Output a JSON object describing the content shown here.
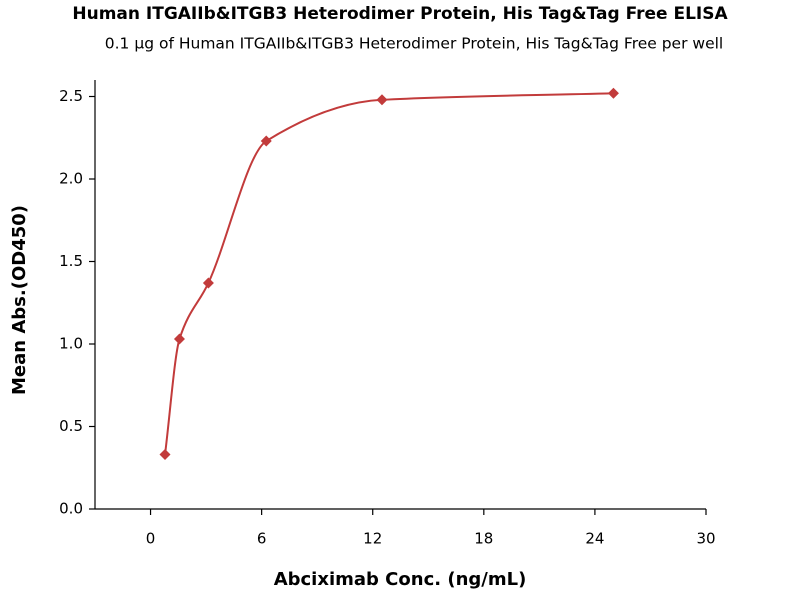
{
  "chart_data": {
    "type": "scatter",
    "title": "Human ITGAIIb&ITGB3 Heterodimer Protein, His Tag&Tag Free ELISA",
    "subtitle": "0.1 μg of Human ITGAIIb&ITGB3 Heterodimer Protein, His Tag&Tag Free per well",
    "x_label": "Abciximab Conc. (ng/mL)",
    "y_label": "Mean Abs.(OD450)",
    "x": [
      0.78125,
      1.5625,
      3.125,
      6.25,
      12.5,
      25
    ],
    "series": [
      {
        "color": "#c23b3b",
        "values": [
          0.33,
          1.03,
          1.37,
          2.23,
          2.48,
          2.52
        ]
      }
    ],
    "xlim": [
      -3,
      30
    ],
    "xticks": [
      0,
      6,
      12,
      18,
      24,
      30
    ],
    "ylim": [
      0,
      2.6
    ],
    "yticks": [
      {
        "value": 0,
        "label": "0.0"
      },
      0.5,
      {
        "value": 1,
        "label": "1.0"
      },
      1.5,
      {
        "value": 2,
        "label": "2.0"
      },
      2.5
    ]
  }
}
